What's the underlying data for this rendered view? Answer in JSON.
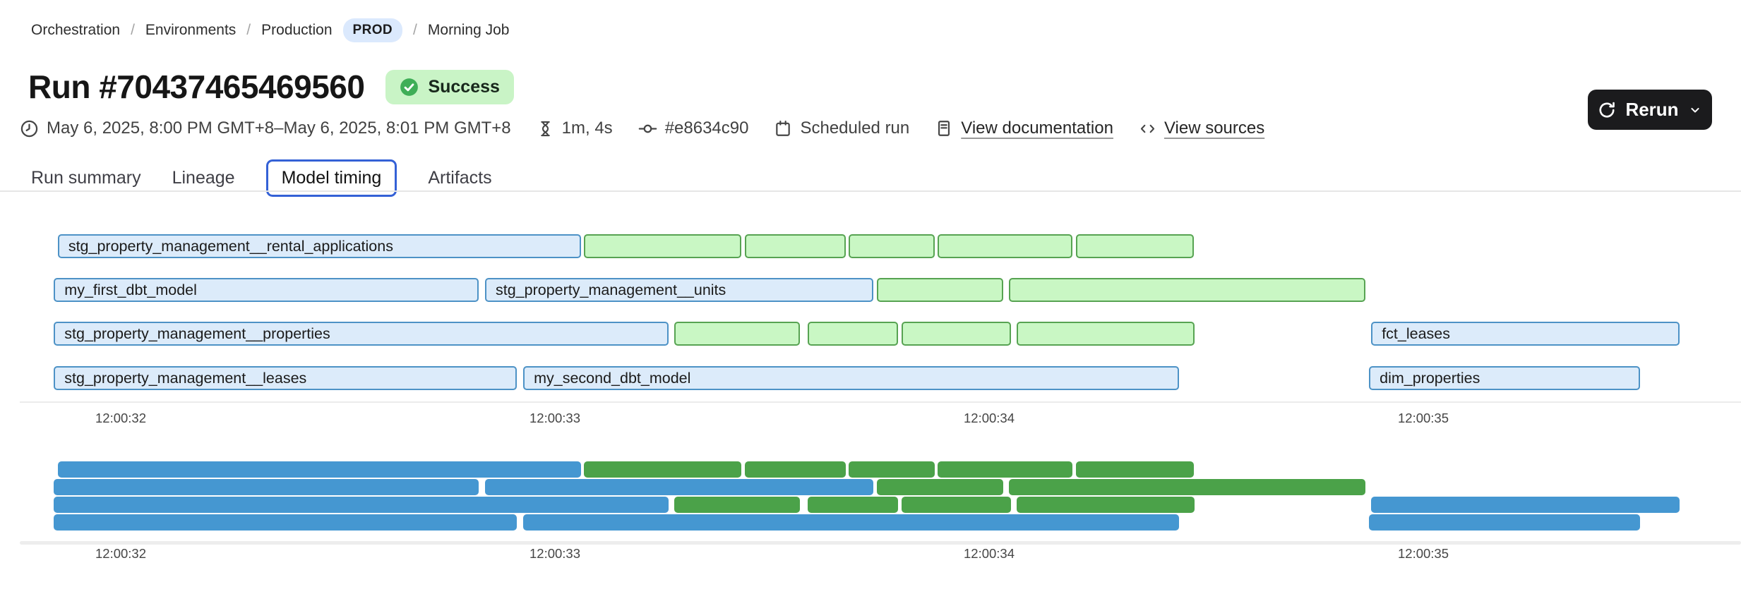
{
  "breadcrumb": {
    "separator": "/",
    "items": [
      {
        "label": "Orchestration",
        "type": "link",
        "sep_before": false
      },
      {
        "label": "Environments",
        "type": "link",
        "sep_before": true
      },
      {
        "label": "Production",
        "type": "link",
        "sep_before": true
      },
      {
        "label": "PROD",
        "type": "badge",
        "sep_before": false
      },
      {
        "label": "Morning Job",
        "type": "current",
        "sep_before": true
      }
    ]
  },
  "header": {
    "title": "Run #70437465469560",
    "status_label": "Success",
    "rerun_label": "Rerun"
  },
  "meta": {
    "time_range": "May 6, 2025, 8:00 PM GMT+8–May 6, 2025, 8:01 PM GMT+8",
    "duration": "1m, 4s",
    "commit": "#e8634c90",
    "trigger": "Scheduled run",
    "docs_link": "View documentation",
    "sources_link": "View sources"
  },
  "tabs": [
    {
      "label": "Run summary",
      "active": false
    },
    {
      "label": "Lineage",
      "active": false
    },
    {
      "label": "Model timing",
      "active": true
    },
    {
      "label": "Artifacts",
      "active": false
    }
  ],
  "icons": {
    "time_range": "clock-icon",
    "duration": "hourglass-icon",
    "commit": "commit-icon",
    "trigger": "calendar-icon",
    "docs": "document-icon",
    "sources": "code-icon",
    "rerun": "refresh-icon",
    "rerun_caret": "chevron-down-icon",
    "status": "check-icon"
  },
  "colors": {
    "accent_blue": "#3461d6",
    "status_green_bg": "#c9f4c6",
    "status_green_icon": "#3fae57",
    "prod_badge_bg": "#dbe9fd",
    "bar_blue_fill": "#dcebfa",
    "bar_blue_border": "#4d92c6",
    "bar_green_fill": "#c9f7c4",
    "bar_green_border": "#57a352",
    "minimap_blue": "#4597d1",
    "minimap_green": "#4ba249",
    "rerun_bg": "#1b1b1d"
  },
  "chart_data": {
    "type": "gantt",
    "title": "Model timing",
    "x_axis": {
      "unit": "time",
      "ticks_repeat": [
        "main chart",
        "minimap"
      ]
    },
    "x_ticks": [
      {
        "label": "12:00:32",
        "sec": 32
      },
      {
        "label": "12:00:33",
        "sec": 33
      },
      {
        "label": "12:00:34",
        "sec": 34
      },
      {
        "label": "12:00:35",
        "sec": 35
      }
    ],
    "bars": [
      {
        "row": 0,
        "label": "stg_property_management__rental_applications",
        "color": "blue",
        "start": 31.855,
        "end": 33.06
      },
      {
        "row": 0,
        "label": "",
        "color": "green",
        "start": 33.067,
        "end": 33.43
      },
      {
        "row": 0,
        "label": "",
        "color": "green",
        "start": 33.438,
        "end": 33.67
      },
      {
        "row": 0,
        "label": "",
        "color": "green",
        "start": 33.677,
        "end": 33.875
      },
      {
        "row": 0,
        "label": "",
        "color": "green",
        "start": 33.881,
        "end": 34.192
      },
      {
        "row": 0,
        "label": "",
        "color": "green",
        "start": 34.2,
        "end": 34.472
      },
      {
        "row": 1,
        "label": "my_first_dbt_model",
        "color": "blue",
        "start": 31.846,
        "end": 32.824
      },
      {
        "row": 1,
        "label": "stg_property_management__units",
        "color": "blue",
        "start": 32.839,
        "end": 33.733
      },
      {
        "row": 1,
        "label": "",
        "color": "green",
        "start": 33.742,
        "end": 34.033
      },
      {
        "row": 1,
        "label": "",
        "color": "green",
        "start": 34.046,
        "end": 34.867
      },
      {
        "row": 2,
        "label": "stg_property_management__properties",
        "color": "blue",
        "start": 31.846,
        "end": 33.262
      },
      {
        "row": 2,
        "label": "",
        "color": "green",
        "start": 33.275,
        "end": 33.564
      },
      {
        "row": 2,
        "label": "",
        "color": "green",
        "start": 33.582,
        "end": 33.79
      },
      {
        "row": 2,
        "label": "",
        "color": "green",
        "start": 33.798,
        "end": 34.05
      },
      {
        "row": 2,
        "label": "",
        "color": "green",
        "start": 34.063,
        "end": 34.473
      },
      {
        "row": 2,
        "label": "fct_leases",
        "color": "blue",
        "start": 34.88,
        "end": 35.59
      },
      {
        "row": 3,
        "label": "stg_property_management__leases",
        "color": "blue",
        "start": 31.846,
        "end": 32.912
      },
      {
        "row": 3,
        "label": "my_second_dbt_model",
        "color": "blue",
        "start": 32.927,
        "end": 34.437
      },
      {
        "row": 3,
        "label": "dim_properties",
        "color": "blue",
        "start": 34.875,
        "end": 35.499
      }
    ]
  }
}
